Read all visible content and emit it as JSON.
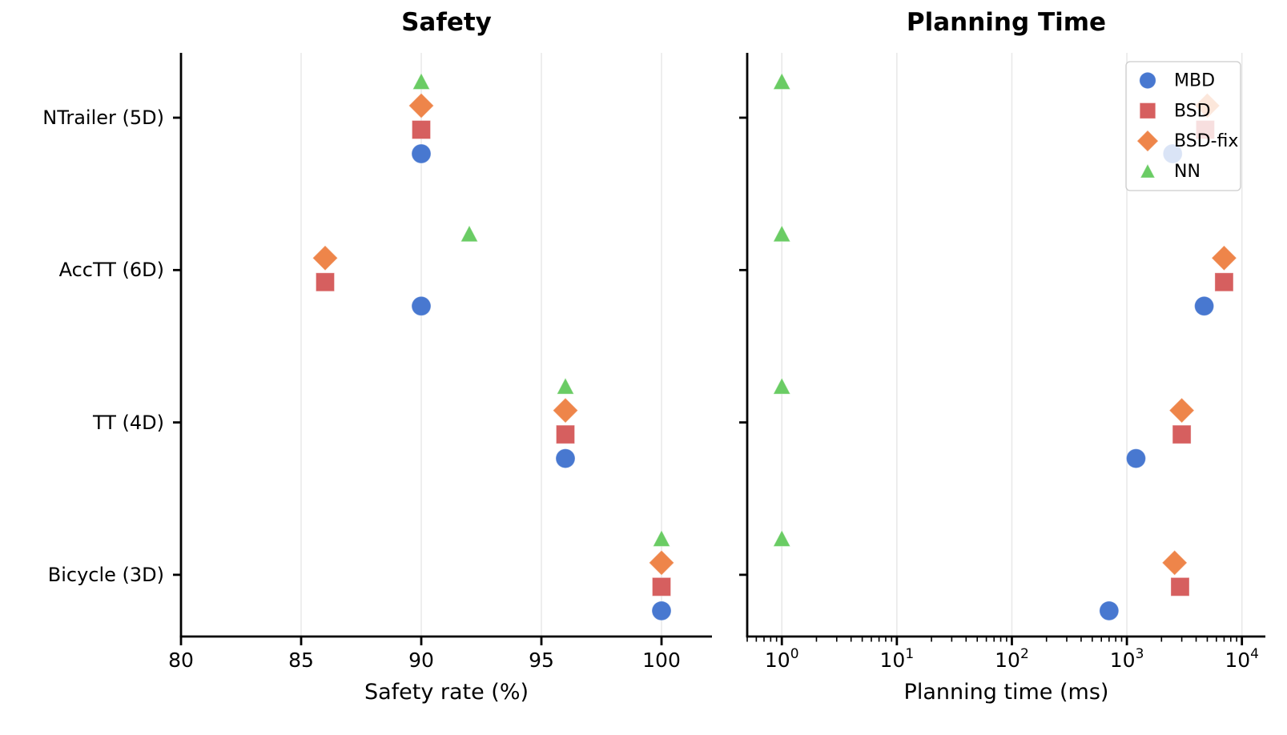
{
  "style": {
    "background": "#ffffff",
    "grid_color": "#e9e9e9",
    "spine_color": "#000000",
    "text_color": "#000000",
    "legend_border_color": "#cccccc",
    "legend_bg": "#ffffff"
  },
  "legend": {
    "position": "upper right of Planning Time panel",
    "items": [
      {
        "label": "MBD",
        "marker": "circle",
        "color": "#4878D0"
      },
      {
        "label": "BSD",
        "marker": "square",
        "color": "#D65F5F"
      },
      {
        "label": "BSD-fix",
        "marker": "diamond",
        "color": "#EE854A"
      },
      {
        "label": "NN",
        "marker": "triangle",
        "color": "#6ACC64"
      }
    ]
  },
  "chart_data": [
    {
      "type": "scatter",
      "title": "Safety",
      "xlabel": "Safety rate (%)",
      "ylabel": "",
      "xscale": "linear",
      "xlim": [
        80,
        102.1
      ],
      "xticks": [
        80,
        85,
        90,
        95,
        100
      ],
      "xtick_labels": [
        "80",
        "85",
        "90",
        "95",
        "100"
      ],
      "grid": "vertical",
      "categories": [
        "NTrailer (5D)",
        "AccTT (6D)",
        "TT (4D)",
        "Bicycle (3D)"
      ],
      "series": [
        {
          "name": "MBD",
          "values": [
            90,
            90,
            96,
            100
          ]
        },
        {
          "name": "BSD",
          "values": [
            90,
            86,
            96,
            100
          ]
        },
        {
          "name": "BSD-fix",
          "values": [
            90,
            86,
            96,
            100
          ]
        },
        {
          "name": "NN",
          "values": [
            90,
            92,
            96,
            100
          ]
        }
      ]
    },
    {
      "type": "scatter",
      "title": "Planning Time",
      "xlabel": "Planning time (ms)",
      "ylabel": "",
      "xscale": "log",
      "xlim": [
        0.5,
        16000
      ],
      "xticks": [
        1,
        10,
        100,
        1000,
        10000
      ],
      "xtick_labels": [
        "10^0",
        "10^1",
        "10^2",
        "10^3",
        "10^4"
      ],
      "grid": "vertical",
      "legend_position": "upper right",
      "categories": [
        "NTrailer (5D)",
        "AccTT (6D)",
        "TT (4D)",
        "Bicycle (3D)"
      ],
      "series": [
        {
          "name": "MBD",
          "values": [
            2500,
            4700,
            1200,
            700
          ]
        },
        {
          "name": "BSD",
          "values": [
            4800,
            7000,
            3000,
            2900
          ]
        },
        {
          "name": "BSD-fix",
          "values": [
            5000,
            7000,
            3000,
            2600
          ]
        },
        {
          "name": "NN",
          "values": [
            1,
            1,
            1,
            1
          ]
        }
      ]
    }
  ]
}
